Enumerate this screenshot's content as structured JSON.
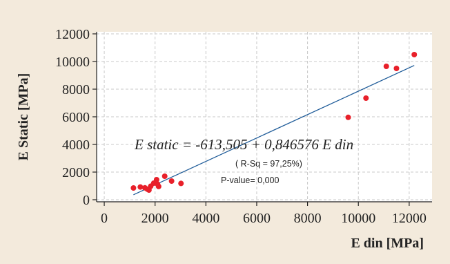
{
  "chart_data": {
    "type": "scatter",
    "xlabel": "E din [MPa]",
    "ylabel": "E Static [MPa]",
    "xlim": [
      -300,
      12900
    ],
    "ylim": [
      -150,
      12150
    ],
    "x_ticks": [
      0,
      2000,
      4000,
      6000,
      8000,
      10000,
      12000
    ],
    "y_ticks": [
      0,
      2000,
      4000,
      6000,
      8000,
      10000,
      12000
    ],
    "grid": true,
    "grid_style": "dashed",
    "series": [
      {
        "color": "#e8202a",
        "points": [
          [
            1150,
            850
          ],
          [
            1420,
            920
          ],
          [
            1600,
            860
          ],
          [
            1700,
            760
          ],
          [
            1760,
            700
          ],
          [
            1830,
            980
          ],
          [
            1950,
            1200
          ],
          [
            2060,
            1450
          ],
          [
            2100,
            1120
          ],
          [
            2140,
            960
          ],
          [
            2380,
            1700
          ],
          [
            2650,
            1350
          ],
          [
            3020,
            1180
          ],
          [
            9600,
            5960
          ],
          [
            10300,
            7350
          ],
          [
            11100,
            9650
          ],
          [
            11500,
            9500
          ],
          [
            12200,
            10500
          ]
        ]
      }
    ],
    "fit_line": {
      "color": "#1f5c99",
      "intercept": -613.505,
      "slope": 0.846576,
      "x_range": [
        1150,
        12200
      ]
    },
    "annotations": {
      "equation": "E static  =  -613,505 + 0,846576 E din",
      "r_squared": "( R-Sq = 97,25%)",
      "p_value": "P-value= 0,000"
    }
  }
}
